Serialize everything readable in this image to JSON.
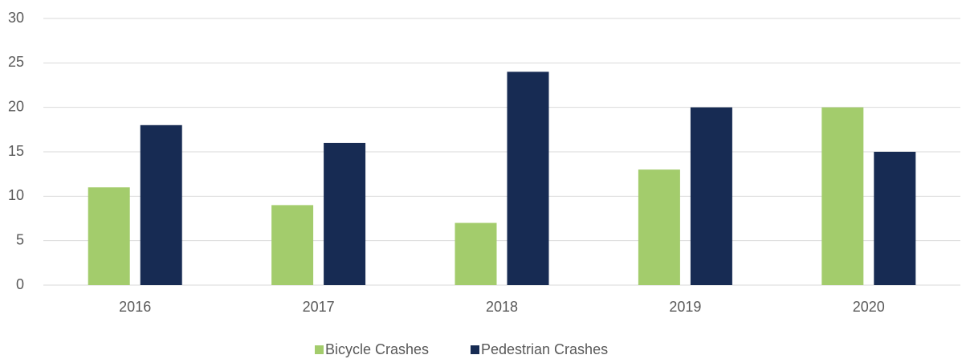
{
  "chart_data": {
    "type": "bar",
    "categories": [
      "2016",
      "2017",
      "2018",
      "2019",
      "2020"
    ],
    "series": [
      {
        "name": "Bicycle Crashes",
        "color": "#a3cc6c",
        "values": [
          11,
          9,
          7,
          13,
          20
        ]
      },
      {
        "name": "Pedestrian Crashes",
        "color": "#172b53",
        "values": [
          18,
          16,
          24,
          20,
          15
        ]
      }
    ],
    "ylim": [
      0,
      30
    ],
    "yticks": [
      0,
      5,
      10,
      15,
      20,
      25,
      30
    ],
    "grid": true,
    "legend": "bottom"
  }
}
